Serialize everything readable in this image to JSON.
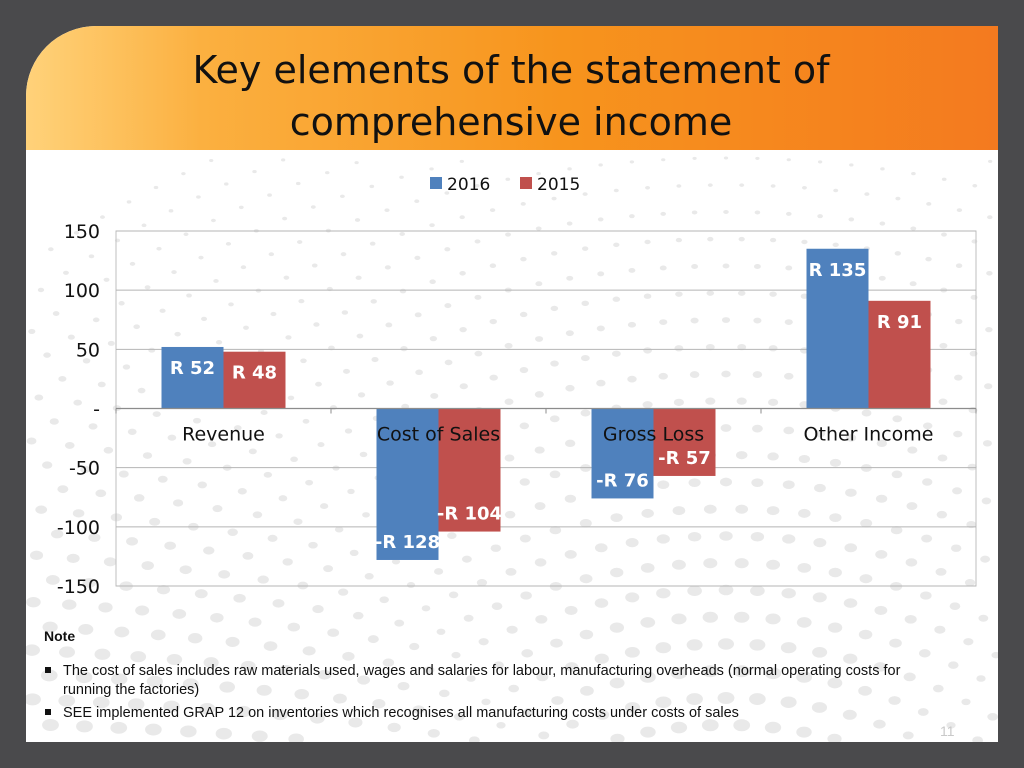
{
  "title": "Key elements of the statement of comprehensive income",
  "colors": {
    "series_2016": "#4f81bd",
    "series_2015": "#c0504d",
    "title_band": "#f7941d",
    "frame": "#4a4a4c"
  },
  "chart_data": {
    "type": "bar",
    "categories": [
      "Revenue",
      "Cost of Sales",
      "Gross Loss",
      "Other Income"
    ],
    "series": [
      {
        "name": "2016",
        "values": [
          52,
          -128,
          -76,
          135
        ],
        "labels": [
          "R 52",
          "-R 128",
          "-R 76",
          "R 135"
        ],
        "color": "#4f81bd"
      },
      {
        "name": "2015",
        "values": [
          48,
          -104,
          -57,
          91
        ],
        "labels": [
          "R 48",
          "-R 104",
          "-R 57",
          "R 91"
        ],
        "color": "#c0504d"
      }
    ],
    "ylim": [
      -150,
      150
    ],
    "yticks": [
      150,
      100,
      50,
      0,
      -50,
      -100,
      -150
    ],
    "ytick_labels": [
      "150",
      "100",
      "50",
      "-",
      "-50",
      "-100",
      "-150"
    ],
    "legend_position": "top",
    "grid": true
  },
  "note": {
    "heading": "Note",
    "items": [
      "The cost of sales includes raw materials used, wages and salaries for labour, manufacturing overheads (normal operating costs for running the factories)",
      "SEE implemented GRAP 12 on inventories  which recognises all manufacturing costs under costs of sales"
    ]
  },
  "page_number": "11"
}
